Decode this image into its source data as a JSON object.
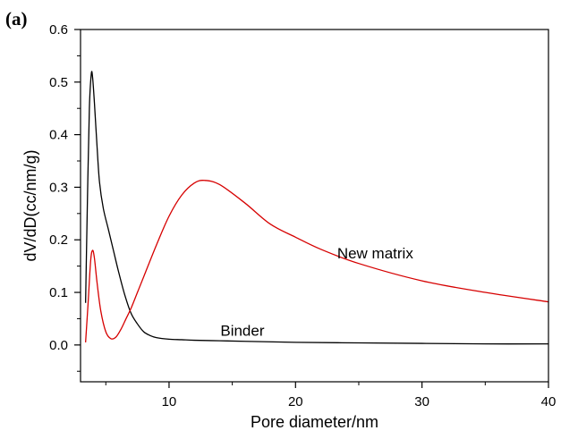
{
  "panel_label": "(a)",
  "chart_data": {
    "type": "line",
    "title": "",
    "xlabel": "Pore diameter/nm",
    "ylabel": "dV/dD(cc/nm/g)",
    "xlim": [
      3,
      40
    ],
    "ylim": [
      -0.07,
      0.6
    ],
    "x_ticks": [
      10,
      20,
      30,
      40
    ],
    "x_tick_labels": [
      "10",
      "20",
      "30",
      "40"
    ],
    "y_ticks": [
      0.0,
      0.1,
      0.2,
      0.3,
      0.4,
      0.5,
      0.6
    ],
    "y_tick_labels": [
      "0.0",
      "0.1",
      "0.2",
      "0.3",
      "0.4",
      "0.5",
      "0.6"
    ],
    "grid": false,
    "legend": "none",
    "series": [
      {
        "name": "Binder",
        "color": "#000000",
        "x": [
          3.4,
          3.55,
          3.7,
          3.85,
          3.95,
          4.1,
          4.3,
          4.5,
          4.8,
          5.2,
          5.6,
          6.0,
          6.5,
          7.0,
          7.5,
          8.0,
          8.5,
          9.0,
          10,
          11,
          12,
          14,
          16,
          20,
          25,
          30,
          35,
          40
        ],
        "y": [
          0.08,
          0.28,
          0.45,
          0.515,
          0.51,
          0.46,
          0.38,
          0.31,
          0.26,
          0.22,
          0.18,
          0.14,
          0.095,
          0.06,
          0.04,
          0.025,
          0.018,
          0.014,
          0.011,
          0.01,
          0.009,
          0.008,
          0.007,
          0.005,
          0.004,
          0.003,
          0.002,
          0.002
        ]
      },
      {
        "name": "New matrix",
        "color": "#d60000",
        "x": [
          3.4,
          3.6,
          3.8,
          3.95,
          4.1,
          4.3,
          4.6,
          5.0,
          5.4,
          5.8,
          6.2,
          6.6,
          7.0,
          7.5,
          8.0,
          9.0,
          10,
          11,
          12,
          12.8,
          14,
          16,
          18,
          20,
          22,
          25,
          30,
          35,
          40
        ],
        "y": [
          0.005,
          0.08,
          0.16,
          0.18,
          0.165,
          0.12,
          0.065,
          0.025,
          0.012,
          0.015,
          0.03,
          0.05,
          0.07,
          0.1,
          0.13,
          0.19,
          0.245,
          0.285,
          0.308,
          0.313,
          0.305,
          0.27,
          0.23,
          0.205,
          0.182,
          0.155,
          0.122,
          0.1,
          0.082
        ]
      }
    ],
    "annotations": [
      {
        "text": "Binder",
        "x": 15.8,
        "y": 0.018
      },
      {
        "text": "New matrix",
        "x": 26.3,
        "y": 0.165
      }
    ]
  }
}
